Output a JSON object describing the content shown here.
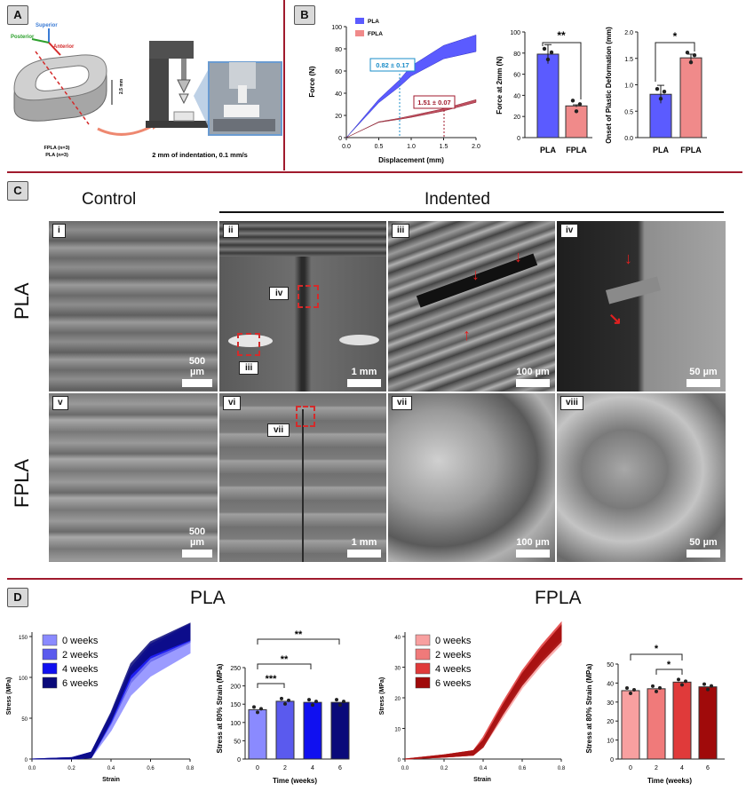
{
  "panels": {
    "a": "A",
    "b": "B",
    "c": "C",
    "d": "D"
  },
  "panelA": {
    "axes": {
      "superior": "Superior",
      "posterior": "Posterior",
      "anterior": "Anterior"
    },
    "height": "2.5 mm",
    "groups": [
      "FPLA (n=3)",
      "PLA (n=3)"
    ],
    "caption": "2 mm of indentation, 0.1 mm/s"
  },
  "panelB": {
    "colors": {
      "pla": "#5b5bff",
      "fpla": "#f08a8a",
      "pla_dark": "#4c4cc8",
      "fpla_dark": "#b53a4a"
    },
    "forceCurve": {
      "ylabel": "Force (N)",
      "xlabel": "Displacement (mm)",
      "yticks": [
        "0",
        "20",
        "40",
        "60",
        "80",
        "100"
      ],
      "xticks": [
        "0.0",
        "0.5",
        "1.0",
        "1.5",
        "2.0"
      ],
      "legend": [
        "PLA",
        "FPLA"
      ],
      "ann_pla": "0.82 ± 0.17",
      "ann_fpla": "1.51 ± 0.07"
    },
    "forceBar": {
      "ylabel": "Force at 2mm (N)",
      "yticks": [
        "0",
        "20",
        "40",
        "60",
        "80",
        "100"
      ],
      "cats": [
        "PLA",
        "FPLA"
      ],
      "sig": "**"
    },
    "onsetBar": {
      "ylabel": "Onset of Plastic Deformation (mm)",
      "yticks": [
        "0.0",
        "0.5",
        "1.0",
        "1.5",
        "2.0"
      ],
      "cats": [
        "PLA",
        "FPLA"
      ],
      "sig": "*"
    }
  },
  "panelC": {
    "control": "Control",
    "indented": "Indented",
    "rows": [
      "PLA",
      "FPLA"
    ],
    "tiles": [
      {
        "id": "i",
        "scale": "500 µm"
      },
      {
        "id": "ii",
        "scale": "1 mm",
        "insets": [
          "iv",
          "iii"
        ]
      },
      {
        "id": "iii",
        "scale": "100 µm"
      },
      {
        "id": "iv",
        "scale": "50 µm"
      },
      {
        "id": "v",
        "scale": "500 µm"
      },
      {
        "id": "vi",
        "scale": "1 mm",
        "insets": [
          "vii"
        ]
      },
      {
        "id": "vii",
        "scale": "100 µm"
      },
      {
        "id": "viii",
        "scale": "50 µm"
      }
    ]
  },
  "panelD": {
    "pla": {
      "title": "PLA",
      "legend": [
        "0 weeks",
        "2 weeks",
        "4 weeks",
        "6 weeks"
      ],
      "colors": [
        "#8a8aff",
        "#5a5aee",
        "#1010f0",
        "#0a0a7a"
      ],
      "curve": {
        "ylabel": "Stress (MPa)",
        "xlabel": "Strain",
        "yticks": [
          "0",
          "50",
          "100",
          "150"
        ],
        "xticks": [
          "0.0",
          "0.2",
          "0.4",
          "0.6",
          "0.8"
        ]
      },
      "bar": {
        "ylabel": "Stress at 80% Strain (MPa)",
        "xlabel": "Time (weeks)",
        "yticks": [
          "0",
          "50",
          "100",
          "150",
          "200",
          "250"
        ],
        "cats": [
          "0",
          "2",
          "4",
          "6"
        ],
        "sig": [
          "***",
          "**",
          "**"
        ]
      }
    },
    "fpla": {
      "title": "FPLA",
      "legend": [
        "0 weeks",
        "2 weeks",
        "4 weeks",
        "6 weeks"
      ],
      "colors": [
        "#f8a0a0",
        "#f07a7a",
        "#e03a3a",
        "#a00a0a"
      ],
      "curve": {
        "ylabel": "Stress (MPa)",
        "xlabel": "Strain",
        "yticks": [
          "0",
          "10",
          "20",
          "30",
          "40"
        ],
        "xticks": [
          "0.0",
          "0.2",
          "0.4",
          "0.6",
          "0.8"
        ]
      },
      "bar": {
        "ylabel": "Stress at 80% Strain (MPa)",
        "xlabel": "Time (weeks)",
        "yticks": [
          "0",
          "10",
          "20",
          "30",
          "40",
          "50"
        ],
        "cats": [
          "0",
          "2",
          "4",
          "6"
        ],
        "sig": [
          "*",
          "*"
        ]
      }
    }
  },
  "chart_data": [
    {
      "type": "line",
      "x": [
        0.0,
        0.5,
        0.82,
        1.0,
        1.5,
        2.0
      ],
      "series": [
        {
          "name": "PLA",
          "values": [
            0,
            33,
            49,
            60,
            77,
            85
          ]
        },
        {
          "name": "FPLA",
          "values": [
            0,
            14,
            17,
            19,
            25,
            33
          ]
        }
      ],
      "xlabel": "Displacement (mm)",
      "ylabel": "Force (N)",
      "xlim": [
        0,
        2
      ],
      "ylim": [
        0,
        100
      ],
      "legend": "top-left"
    },
    {
      "type": "bar",
      "categories": [
        "PLA",
        "FPLA"
      ],
      "values": [
        79,
        30
      ],
      "errors": [
        9,
        1
      ],
      "ylabel": "Force at 2mm (N)",
      "ylim": [
        0,
        100
      ]
    },
    {
      "type": "bar",
      "categories": [
        "PLA",
        "FPLA"
      ],
      "values": [
        0.82,
        1.51
      ],
      "errors": [
        0.17,
        0.07
      ],
      "ylabel": "Onset of Plastic Deformation (mm)",
      "ylim": [
        0,
        2
      ]
    },
    {
      "type": "line",
      "x": [
        0.0,
        0.2,
        0.3,
        0.4,
        0.5,
        0.6,
        0.8
      ],
      "series": [
        {
          "name": "0 weeks",
          "values": [
            0,
            0,
            5,
            40,
            85,
            110,
            140
          ]
        },
        {
          "name": "2 weeks",
          "values": [
            0,
            0,
            5,
            48,
            100,
            128,
            153
          ]
        },
        {
          "name": "4 weeks",
          "values": [
            0,
            0,
            5,
            50,
            105,
            132,
            155
          ]
        },
        {
          "name": "6 weeks",
          "values": [
            0,
            0,
            5,
            52,
            110,
            135,
            156
          ]
        }
      ],
      "xlabel": "Strain",
      "ylabel": "Stress (MPa)",
      "xlim": [
        0,
        0.8
      ],
      "ylim": [
        0,
        160
      ],
      "legend": "top-left"
    },
    {
      "type": "bar",
      "categories": [
        "0",
        "2",
        "4",
        "6"
      ],
      "values": [
        135,
        158,
        155,
        155
      ],
      "xlabel": "Time (weeks)",
      "ylabel": "Stress at 80% Strain (MPa)",
      "ylim": [
        0,
        250
      ]
    },
    {
      "type": "line",
      "x": [
        0.0,
        0.2,
        0.35,
        0.4,
        0.5,
        0.6,
        0.7,
        0.8
      ],
      "series": [
        {
          "name": "0 weeks",
          "values": [
            0,
            1,
            2,
            5,
            15,
            25,
            33,
            40
          ]
        },
        {
          "name": "2 weeks",
          "values": [
            0,
            1,
            2,
            5,
            16,
            26,
            34,
            41
          ]
        },
        {
          "name": "4 weeks",
          "values": [
            0,
            1,
            2,
            6,
            17,
            27,
            35,
            42
          ]
        },
        {
          "name": "6 weeks",
          "values": [
            0,
            1,
            2,
            5,
            16,
            26,
            34,
            41
          ]
        }
      ],
      "xlabel": "Strain",
      "ylabel": "Stress (MPa)",
      "xlim": [
        0,
        0.8
      ],
      "ylim": [
        0,
        40
      ],
      "legend": "top-left"
    },
    {
      "type": "bar",
      "categories": [
        "0",
        "2",
        "4",
        "6"
      ],
      "values": [
        36,
        37,
        40.5,
        38
      ],
      "xlabel": "Time (weeks)",
      "ylabel": "Stress at 80% Strain (MPa)",
      "ylim": [
        0,
        50
      ]
    }
  ]
}
